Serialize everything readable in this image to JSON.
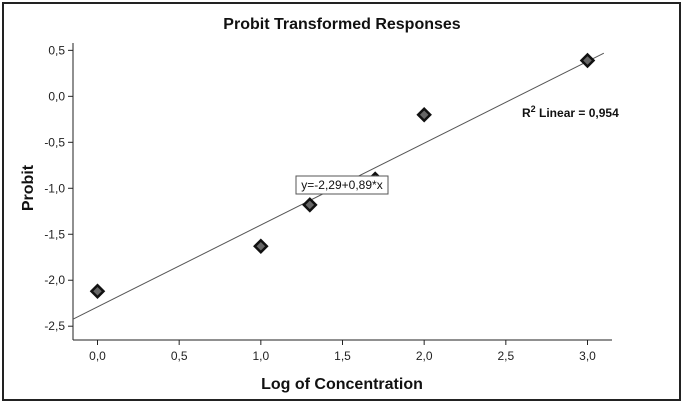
{
  "chart_data": {
    "type": "scatter",
    "title": "Probit Transformed Responses",
    "xlabel": "Log of Concentration",
    "ylabel": "Probit",
    "xlim": [
      -0.15,
      3.15
    ],
    "ylim": [
      -2.65,
      0.58
    ],
    "x_ticks": [
      0.0,
      0.5,
      1.0,
      1.5,
      2.0,
      2.5,
      3.0
    ],
    "x_tick_labels": [
      "0,0",
      "0,5",
      "1,0",
      "1,5",
      "2,0",
      "2,5",
      "3,0"
    ],
    "y_ticks": [
      0.5,
      0.0,
      -0.5,
      -1.0,
      -1.5,
      -2.0,
      -2.5
    ],
    "y_tick_labels": [
      "0,5",
      "0,0",
      "-0,5",
      "-1,0",
      "-1,5",
      "-2,0",
      "-2,5"
    ],
    "grid": false,
    "points": [
      {
        "x": 0.0,
        "y": -2.12
      },
      {
        "x": 1.0,
        "y": -1.63
      },
      {
        "x": 1.3,
        "y": -1.18
      },
      {
        "x": 1.7,
        "y": -0.9
      },
      {
        "x": 2.0,
        "y": -0.2
      },
      {
        "x": 3.0,
        "y": 0.39
      }
    ],
    "fit_line": {
      "intercept": -2.29,
      "slope": 0.89,
      "x_range": [
        -0.15,
        3.1
      ]
    },
    "equation_label": "y=-2,29+0,89*x",
    "r2_label": {
      "prefix": "R",
      "superscript": "2",
      "text": " Linear = 0,954"
    },
    "marker_fill": "#666666",
    "marker_stroke": "#111111",
    "line_color": "#555555"
  }
}
